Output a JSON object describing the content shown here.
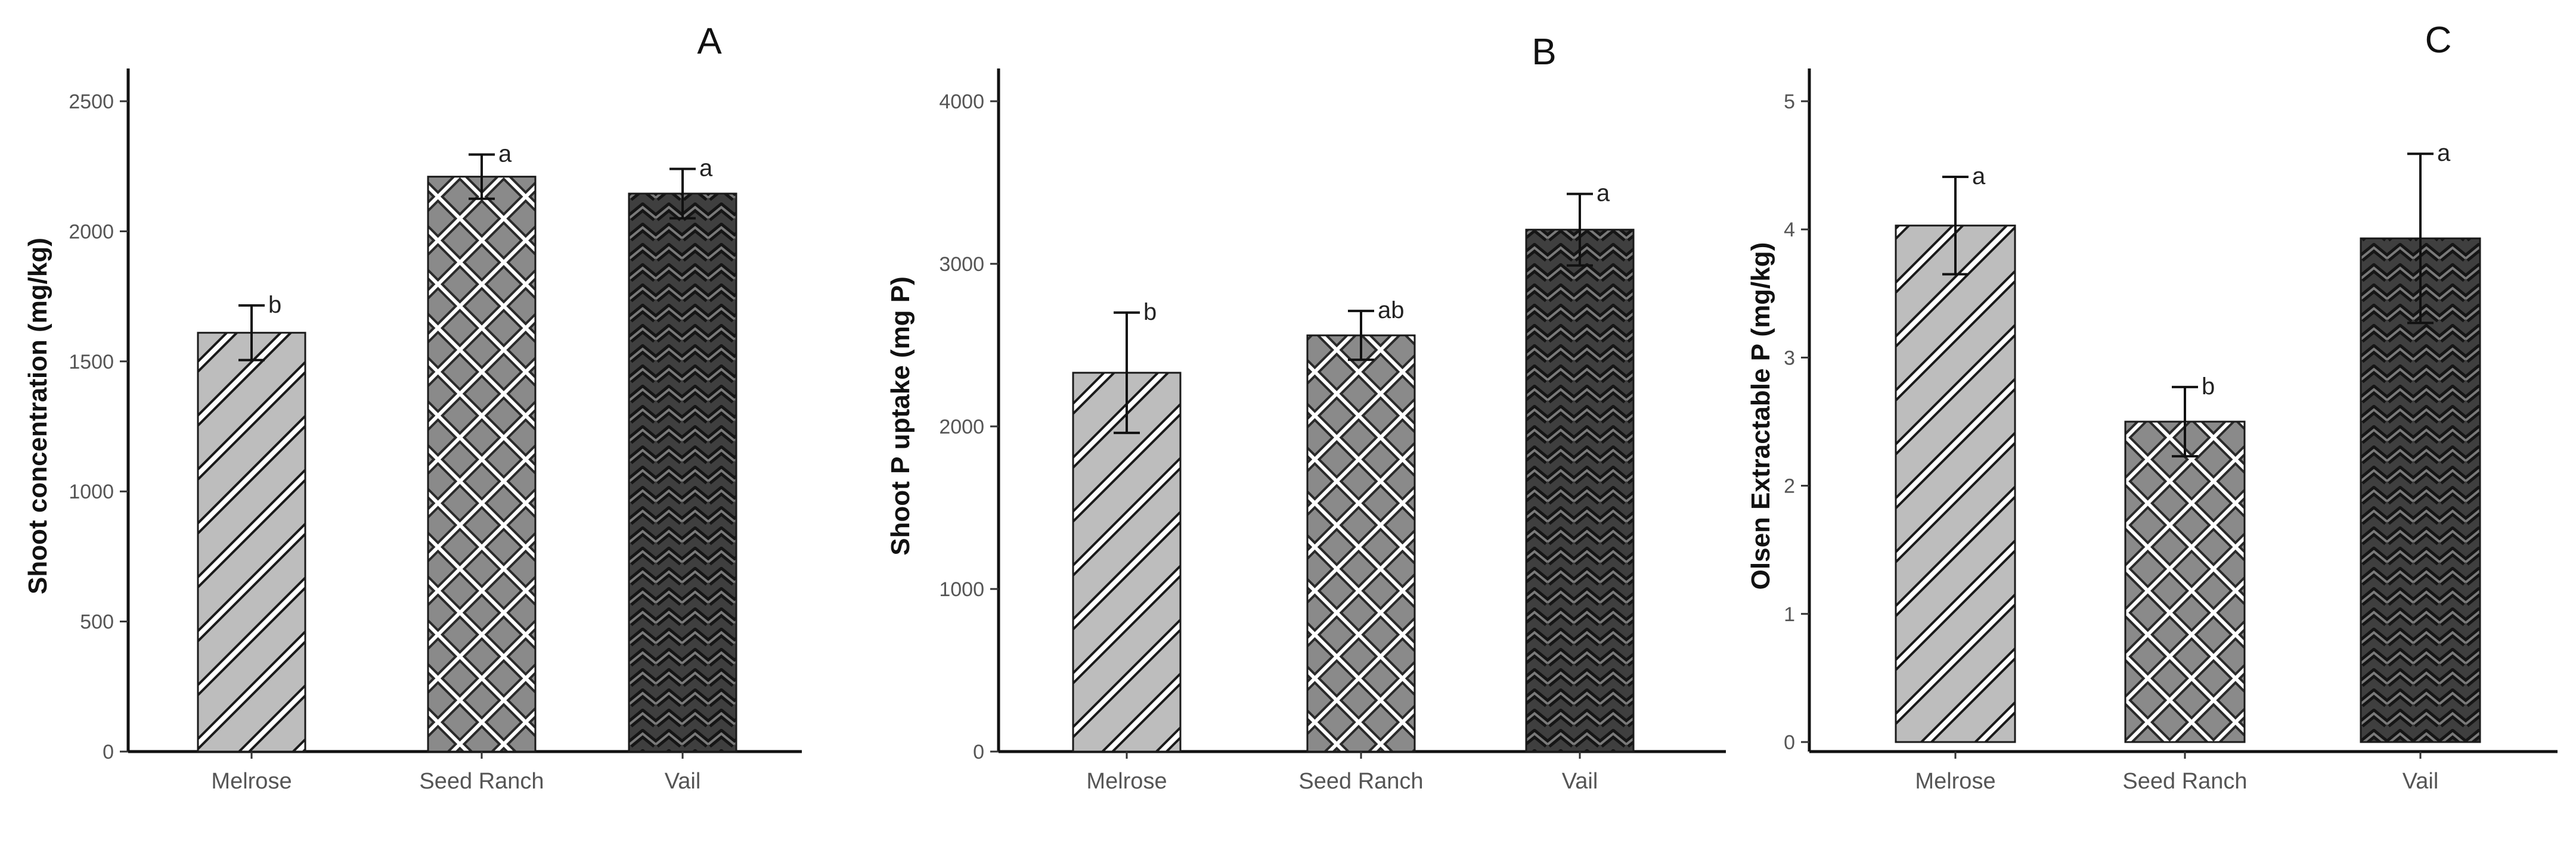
{
  "chart_data": [
    {
      "type": "bar",
      "panel_label": "A",
      "title": "",
      "xlabel": "",
      "ylabel": "Shoot concentration (mg/kg)",
      "ylim": [
        0,
        2500
      ],
      "yticks": [
        0,
        500,
        1000,
        1500,
        2000,
        2500
      ],
      "grid": false,
      "categories": [
        "Melrose",
        "Seed Ranch",
        "Vail"
      ],
      "values": [
        1610,
        2210,
        2145
      ],
      "error": [
        105,
        85,
        95
      ],
      "significance": [
        "b",
        "a",
        "a"
      ],
      "colors": [
        "#bdbdbd",
        "#8a8a8a",
        "#3f3f3f"
      ],
      "patterns": [
        "diagonal-stripes",
        "crosshatch",
        "zigzag"
      ]
    },
    {
      "type": "bar",
      "panel_label": "B",
      "title": "",
      "xlabel": "",
      "ylabel": "Shoot P uptake (mg P)",
      "ylim": [
        0,
        4000
      ],
      "yticks": [
        0,
        1000,
        2000,
        3000,
        4000
      ],
      "grid": false,
      "categories": [
        "Melrose",
        "Seed Ranch",
        "Vail"
      ],
      "values": [
        2330,
        2560,
        3210
      ],
      "error": [
        370,
        150,
        220
      ],
      "significance": [
        "b",
        "ab",
        "a"
      ],
      "colors": [
        "#bdbdbd",
        "#8a8a8a",
        "#3f3f3f"
      ],
      "patterns": [
        "diagonal-stripes",
        "crosshatch",
        "zigzag"
      ]
    },
    {
      "type": "bar",
      "panel_label": "C",
      "title": "",
      "xlabel": "",
      "ylabel": "Olsen Extractable P (mg/kg)",
      "ylim": [
        0,
        5
      ],
      "yticks": [
        0,
        1,
        2,
        3,
        4,
        5
      ],
      "grid": false,
      "categories": [
        "Melrose",
        "Seed Ranch",
        "Vail"
      ],
      "values": [
        4.03,
        2.5,
        3.93
      ],
      "error": [
        0.38,
        0.27,
        0.66
      ],
      "significance": [
        "a",
        "b",
        "a"
      ],
      "colors": [
        "#bdbdbd",
        "#8a8a8a",
        "#3f3f3f"
      ],
      "patterns": [
        "diagonal-stripes",
        "crosshatch",
        "zigzag"
      ]
    }
  ]
}
